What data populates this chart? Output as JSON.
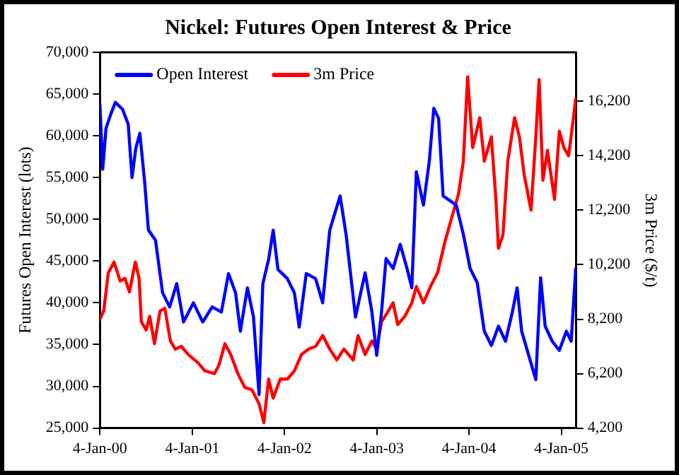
{
  "chart_data": {
    "type": "line",
    "title": "Nickel: Futures Open Interest & Price",
    "ylabel": "Futures Open Interest (lots)",
    "y2label": "3m Price ($/t)",
    "xlim": [
      "2000-01-04",
      "2005-03-04"
    ],
    "xticks": [
      {
        "value": "2000-01-04",
        "label": "4-Jan-00"
      },
      {
        "value": "2001-01-04",
        "label": "4-Jan-01"
      },
      {
        "value": "2002-01-04",
        "label": "4-Jan-02"
      },
      {
        "value": "2003-01-04",
        "label": "4-Jan-03"
      },
      {
        "value": "2004-01-04",
        "label": "4-Jan-04"
      },
      {
        "value": "2005-01-04",
        "label": "4-Jan-05"
      }
    ],
    "ylim": [
      25000,
      70000
    ],
    "yticks": [
      {
        "value": 25000,
        "label": "25,000"
      },
      {
        "value": 30000,
        "label": "30,000"
      },
      {
        "value": 35000,
        "label": "35,000"
      },
      {
        "value": 40000,
        "label": "40,000"
      },
      {
        "value": 45000,
        "label": "45,000"
      },
      {
        "value": 50000,
        "label": "50,000"
      },
      {
        "value": 55000,
        "label": "55,000"
      },
      {
        "value": 60000,
        "label": "60,000"
      },
      {
        "value": 65000,
        "label": "65,000"
      },
      {
        "value": 70000,
        "label": "70,000"
      }
    ],
    "y2lim": [
      4200,
      18000
    ],
    "y2ticks": [
      {
        "value": 4200,
        "label": "4,200"
      },
      {
        "value": 6200,
        "label": "6,200"
      },
      {
        "value": 8200,
        "label": "8,200"
      },
      {
        "value": 10200,
        "label": "10,200"
      },
      {
        "value": 12200,
        "label": "12,200"
      },
      {
        "value": 14200,
        "label": "14,200"
      },
      {
        "value": 16200,
        "label": "16,200"
      }
    ],
    "grid": false,
    "legend": "top left",
    "marker": "none",
    "line_style": "solid",
    "series": [
      {
        "name": "Open Interest",
        "color": "#0000ff",
        "x": [
          "2000-01-04",
          "2000-01-15",
          "2000-01-28",
          "2000-02-16",
          "2000-03-05",
          "2000-04-02",
          "2000-04-25",
          "2000-05-10",
          "2000-05-25",
          "2000-06-10",
          "2000-06-29",
          "2000-07-14",
          "2000-08-11",
          "2000-09-08",
          "2000-10-06",
          "2000-11-03",
          "2000-11-30",
          "2001-01-08",
          "2001-02-14",
          "2001-03-23",
          "2001-04-29",
          "2001-05-27",
          "2001-06-24",
          "2001-07-13",
          "2001-08-10",
          "2001-09-03",
          "2001-09-25",
          "2001-10-10",
          "2001-11-02",
          "2001-11-20",
          "2001-12-09",
          "2002-01-15",
          "2002-02-12",
          "2002-03-03",
          "2002-03-31",
          "2002-05-07",
          "2002-06-04",
          "2002-07-02",
          "2002-08-12",
          "2002-09-05",
          "2002-10-12",
          "2002-11-19",
          "2002-12-16",
          "2003-01-04",
          "2003-01-23",
          "2003-02-10",
          "2003-03-10",
          "2003-04-07",
          "2003-05-04",
          "2003-05-23",
          "2003-06-10",
          "2003-07-08",
          "2003-07-31",
          "2003-08-18",
          "2003-09-06",
          "2003-09-24",
          "2003-10-18",
          "2003-11-15",
          "2003-12-13",
          "2004-01-09",
          "2004-02-06",
          "2004-03-05",
          "2004-04-02",
          "2004-04-30",
          "2004-05-28",
          "2004-06-24",
          "2004-07-13",
          "2004-07-31",
          "2004-08-28",
          "2004-09-25",
          "2004-10-14",
          "2004-11-01",
          "2004-11-29",
          "2004-12-27",
          "2005-01-24",
          "2005-02-12",
          "2005-03-02"
        ],
        "values": [
          63700,
          56000,
          60900,
          62600,
          64000,
          63200,
          61400,
          55000,
          58500,
          60300,
          54500,
          48700,
          47500,
          41200,
          39500,
          42300,
          37700,
          40000,
          37700,
          39500,
          38900,
          43500,
          41200,
          36600,
          41800,
          38300,
          29000,
          42300,
          45200,
          48700,
          44000,
          42900,
          41200,
          37100,
          43500,
          42900,
          40000,
          48700,
          52800,
          48100,
          38300,
          43600,
          38900,
          33700,
          38900,
          45300,
          44100,
          47000,
          44100,
          41800,
          55700,
          51700,
          56900,
          63300,
          62100,
          52800,
          52300,
          51700,
          48200,
          44100,
          42400,
          36600,
          34900,
          37200,
          35400,
          38900,
          41800,
          36600,
          33700,
          30800,
          43000,
          37200,
          35400,
          34300,
          36600,
          35400,
          44100
        ]
      },
      {
        "name": "3m Price",
        "color": "#ff0000",
        "axis": "y2",
        "x": [
          "2000-01-04",
          "2000-01-19",
          "2000-02-06",
          "2000-02-29",
          "2000-03-24",
          "2000-04-12",
          "2000-04-30",
          "2000-05-23",
          "2000-06-07",
          "2000-06-16",
          "2000-07-05",
          "2000-07-19",
          "2000-08-07",
          "2000-08-29",
          "2000-09-17",
          "2000-10-09",
          "2000-10-28",
          "2000-11-21",
          "2000-12-19",
          "2001-01-26",
          "2001-02-23",
          "2001-04-01",
          "2001-04-19",
          "2001-05-13",
          "2001-06-05",
          "2001-07-03",
          "2001-07-30",
          "2001-08-28",
          "2001-09-25",
          "2001-10-14",
          "2001-11-02",
          "2001-11-20",
          "2001-12-18",
          "2002-01-15",
          "2002-02-12",
          "2002-03-12",
          "2002-04-09",
          "2002-05-07",
          "2002-06-04",
          "2002-07-02",
          "2002-07-30",
          "2002-08-27",
          "2002-10-03",
          "2002-10-22",
          "2002-11-19",
          "2002-12-16",
          "2003-01-04",
          "2003-01-23",
          "2003-02-19",
          "2003-03-10",
          "2003-03-28",
          "2003-04-25",
          "2003-05-23",
          "2003-06-10",
          "2003-07-08",
          "2003-08-05",
          "2003-09-02",
          "2003-09-30",
          "2003-10-27",
          "2003-11-24",
          "2003-12-13",
          "2003-12-30",
          "2004-01-19",
          "2004-02-16",
          "2004-03-05",
          "2004-04-02",
          "2004-04-20",
          "2004-04-30",
          "2004-05-18",
          "2004-06-06",
          "2004-07-03",
          "2004-07-22",
          "2004-08-10",
          "2004-09-06",
          "2004-09-25",
          "2004-10-08",
          "2004-10-23",
          "2004-11-10",
          "2004-12-08",
          "2004-12-27",
          "2005-01-14",
          "2005-02-02",
          "2005-02-21",
          "2005-03-02"
        ],
        "values": [
          8200,
          8500,
          9900,
          10300,
          9600,
          9700,
          9200,
          10300,
          9700,
          8100,
          7800,
          8300,
          7300,
          8500,
          8600,
          7400,
          7100,
          7200,
          6900,
          6600,
          6300,
          6200,
          6500,
          7300,
          6900,
          6200,
          5700,
          5600,
          5100,
          4400,
          6000,
          5300,
          6000,
          6000,
          6300,
          6900,
          7100,
          7200,
          7600,
          7100,
          6700,
          7100,
          6700,
          7600,
          6900,
          7400,
          7100,
          8100,
          8500,
          8800,
          8000,
          8300,
          8800,
          9400,
          8800,
          9400,
          9900,
          11000,
          11900,
          12800,
          14000,
          17100,
          14500,
          15600,
          14000,
          14900,
          12600,
          10800,
          11300,
          14000,
          15600,
          14900,
          13500,
          12200,
          14900,
          17000,
          13300,
          14400,
          12600,
          15100,
          14500,
          14200,
          15600,
          16300
        ]
      }
    ]
  }
}
